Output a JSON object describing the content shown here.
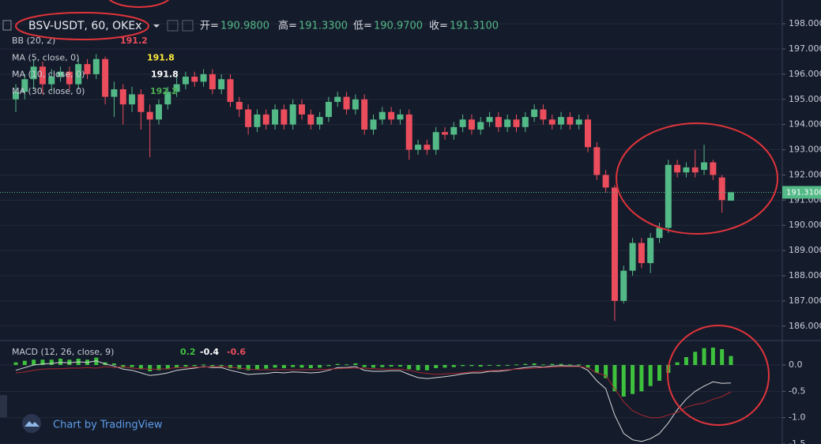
{
  "chart_data": [
    {
      "type": "candlestick",
      "title": "BSV-USDT, 60, OKEx",
      "ohlc_labels": [
        "开=",
        "高=",
        "低=",
        "收="
      ],
      "ohlc_values": [
        {
          "value": 190.98,
          "label": "190.9800"
        },
        {
          "value": 191.33,
          "label": "191.3300"
        },
        {
          "value": 190.97,
          "label": "190.9700"
        },
        {
          "value": 191.31,
          "label": "191.3100"
        }
      ],
      "legends": [
        {
          "label": "BB (20, 2)",
          "values": [
            191.2
          ],
          "colors": [
            "#eb4d5c"
          ]
        },
        {
          "label": "MA (5, close, 0)",
          "values": [
            191.8
          ],
          "colors": [
            "#ffeb3b"
          ]
        },
        {
          "label": "MA (10, close, 0)",
          "values": [
            191.8
          ],
          "colors": [
            "#ffffff"
          ]
        },
        {
          "label": "MA (30, close, 0)",
          "values": [
            192.2
          ],
          "colors": [
            "#4caf50"
          ]
        }
      ],
      "up_color": "#53b987",
      "down_color": "#eb4d5c",
      "last_price": {
        "value": 191.31,
        "label": "191.3100"
      },
      "ylim": [
        185.46,
        198.63
      ],
      "yticks": [
        {
          "value": 186,
          "label": "186.000"
        },
        {
          "value": 187,
          "label": "187.000"
        },
        {
          "value": 188,
          "label": "188.000"
        },
        {
          "value": 189,
          "label": "189.000"
        },
        {
          "value": 190,
          "label": "190.000"
        },
        {
          "value": 191,
          "label": "191.000"
        },
        {
          "value": 192,
          "label": "192.000"
        },
        {
          "value": 193,
          "label": "193.000"
        },
        {
          "value": 194,
          "label": "194.000"
        },
        {
          "value": 195,
          "label": "195.000"
        },
        {
          "value": 196,
          "label": "196.000"
        },
        {
          "value": 197,
          "label": "197.000"
        },
        {
          "value": 198,
          "label": "198.000"
        }
      ],
      "grid": true,
      "open": [
        195.0,
        195.3,
        195.8,
        196.3,
        195.6,
        195.9,
        196.1,
        195.6,
        196.4,
        196.0,
        196.6,
        195.1,
        195.4,
        194.8,
        195.2,
        194.5,
        194.2,
        194.8,
        195.3,
        195.6,
        195.9,
        195.7,
        196.0,
        195.4,
        195.8,
        194.9,
        194.6,
        193.9,
        194.4,
        194.0,
        194.6,
        194.0,
        194.8,
        194.4,
        194.0,
        194.3,
        194.9,
        195.1,
        194.6,
        195.0,
        193.8,
        194.2,
        194.5,
        194.2,
        194.4,
        193.0,
        193.2,
        193.0,
        193.7,
        193.6,
        193.9,
        194.2,
        193.8,
        194.1,
        194.3,
        193.9,
        194.2,
        193.9,
        194.3,
        194.6,
        194.2,
        194.0,
        194.3,
        194.0,
        194.2,
        193.1,
        192.0,
        191.5,
        187.0,
        188.2,
        189.3,
        188.5,
        189.5,
        189.9,
        192.4,
        192.1,
        192.3,
        192.2,
        192.5,
        191.9,
        190.98
      ],
      "high": [
        195.6,
        196.0,
        196.6,
        196.5,
        196.2,
        196.3,
        196.3,
        196.6,
        196.6,
        196.8,
        196.7,
        195.7,
        195.6,
        195.5,
        195.4,
        194.8,
        195.0,
        195.5,
        196.0,
        196.1,
        196.1,
        196.2,
        196.2,
        196.0,
        196.0,
        195.1,
        194.8,
        194.6,
        194.6,
        194.8,
        194.8,
        195.0,
        195.0,
        194.6,
        194.5,
        195.1,
        195.3,
        195.3,
        195.2,
        195.2,
        194.4,
        194.7,
        194.7,
        194.6,
        194.6,
        193.4,
        193.4,
        193.9,
        193.9,
        194.1,
        194.4,
        194.4,
        194.3,
        194.5,
        194.5,
        194.4,
        194.4,
        194.5,
        194.8,
        194.8,
        194.4,
        194.5,
        194.5,
        194.4,
        194.4,
        193.3,
        192.2,
        191.6,
        188.4,
        189.5,
        189.5,
        189.7,
        190.1,
        192.6,
        192.6,
        192.5,
        193.0,
        193.2,
        192.6,
        192.0,
        191.33
      ],
      "low": [
        194.5,
        195.0,
        195.4,
        195.2,
        195.3,
        195.7,
        195.4,
        195.4,
        195.8,
        195.8,
        194.8,
        194.3,
        194.0,
        194.5,
        193.8,
        192.7,
        194.0,
        194.6,
        195.1,
        195.4,
        195.5,
        195.5,
        195.2,
        195.2,
        194.7,
        194.3,
        193.6,
        193.7,
        193.8,
        193.8,
        193.8,
        193.8,
        194.2,
        193.8,
        193.8,
        194.1,
        194.7,
        194.4,
        194.4,
        193.6,
        193.6,
        194.0,
        194.0,
        194.0,
        192.6,
        192.8,
        192.8,
        192.8,
        193.4,
        193.4,
        193.7,
        193.6,
        193.6,
        193.9,
        193.7,
        193.7,
        193.7,
        193.7,
        194.1,
        194.0,
        193.8,
        193.8,
        193.8,
        193.8,
        192.9,
        191.8,
        191.3,
        186.2,
        186.9,
        188.0,
        188.3,
        188.1,
        189.3,
        189.7,
        191.9,
        191.9,
        191.9,
        192.0,
        191.8,
        190.5,
        190.97
      ],
      "close": [
        195.3,
        195.8,
        196.3,
        195.6,
        195.9,
        196.1,
        195.6,
        196.4,
        196.0,
        196.6,
        195.1,
        195.4,
        194.8,
        195.2,
        194.5,
        194.2,
        194.8,
        195.3,
        195.6,
        195.9,
        195.7,
        196.0,
        195.4,
        195.8,
        194.9,
        194.6,
        193.9,
        194.4,
        194.0,
        194.6,
        194.0,
        194.8,
        194.4,
        194.0,
        194.3,
        194.9,
        195.1,
        194.6,
        195.0,
        193.8,
        194.2,
        194.5,
        194.2,
        194.4,
        193.0,
        193.2,
        193.0,
        193.7,
        193.6,
        193.9,
        194.2,
        193.8,
        194.1,
        194.3,
        193.9,
        194.2,
        193.9,
        194.3,
        194.6,
        194.2,
        194.0,
        194.3,
        194.0,
        194.2,
        193.1,
        192.0,
        191.5,
        187.0,
        188.2,
        189.3,
        188.5,
        189.5,
        189.9,
        192.4,
        192.1,
        192.3,
        192.1,
        192.5,
        192.0,
        191.0,
        191.31
      ]
    },
    {
      "type": "macd",
      "legend": {
        "label": "MACD (12, 26, close, 9)",
        "values": [
          0.2,
          -0.4,
          -0.6
        ],
        "colors": [
          "#3ec23e",
          "#ffffff",
          "#eb4d5c"
        ]
      },
      "ylim": [
        -1.5,
        0.45
      ],
      "yticks": [
        {
          "value": 0,
          "label": "0.0"
        },
        {
          "value": -0.5,
          "label": "-0.5"
        },
        {
          "value": -1,
          "label": "-1.0"
        },
        {
          "value": -1.5,
          "label": "-1.5"
        }
      ],
      "histogram": {
        "color": "#3ec23e",
        "values": [
          0.05,
          0.08,
          0.1,
          0.1,
          0.1,
          0.12,
          0.1,
          0.12,
          0.1,
          0.14,
          0.05,
          0.03,
          -0.05,
          -0.04,
          -0.08,
          -0.12,
          -0.1,
          -0.08,
          -0.05,
          -0.03,
          -0.02,
          0.01,
          -0.02,
          -0.02,
          -0.06,
          -0.08,
          -0.1,
          -0.08,
          -0.07,
          -0.05,
          -0.06,
          -0.04,
          -0.05,
          -0.06,
          -0.05,
          -0.02,
          0.02,
          0.01,
          0.03,
          -0.04,
          -0.05,
          -0.04,
          -0.03,
          -0.03,
          -0.08,
          -0.1,
          -0.1,
          -0.06,
          -0.05,
          -0.04,
          -0.02,
          -0.02,
          -0.03,
          -0.01,
          -0.02,
          -0.01,
          0.01,
          0.02,
          0.03,
          0.01,
          0.02,
          0.02,
          0.01,
          0.01,
          -0.05,
          -0.15,
          -0.25,
          -0.5,
          -0.6,
          -0.55,
          -0.5,
          -0.4,
          -0.3,
          -0.15,
          0.05,
          0.15,
          0.25,
          0.32,
          0.33,
          0.3,
          0.17
        ]
      },
      "series": [
        {
          "color": "#d8d8d8",
          "values": [
            -0.1,
            -0.05,
            0,
            0.02,
            0.03,
            0.05,
            0.04,
            0.06,
            0.05,
            0.08,
            0.02,
            -0.02,
            -0.08,
            -0.1,
            -0.15,
            -0.2,
            -0.18,
            -0.15,
            -0.1,
            -0.08,
            -0.06,
            -0.03,
            -0.05,
            -0.05,
            -0.1,
            -0.14,
            -0.18,
            -0.17,
            -0.16,
            -0.14,
            -0.15,
            -0.13,
            -0.14,
            -0.15,
            -0.14,
            -0.1,
            -0.05,
            -0.05,
            -0.03,
            -0.1,
            -0.12,
            -0.12,
            -0.11,
            -0.11,
            -0.18,
            -0.24,
            -0.26,
            -0.24,
            -0.22,
            -0.2,
            -0.17,
            -0.15,
            -0.15,
            -0.12,
            -0.12,
            -0.1,
            -0.07,
            -0.05,
            -0.03,
            -0.04,
            -0.02,
            -0.01,
            -0.02,
            -0.02,
            -0.1,
            -0.3,
            -0.45,
            -0.95,
            -1.3,
            -1.42,
            -1.45,
            -1.4,
            -1.3,
            -1.1,
            -0.85,
            -0.65,
            -0.5,
            -0.4,
            -0.32,
            -0.35,
            -0.34
          ]
        },
        {
          "color": "#a8282f",
          "values": [
            -0.15,
            -0.13,
            -0.1,
            -0.08,
            -0.07,
            -0.07,
            -0.06,
            -0.06,
            -0.05,
            -0.06,
            -0.03,
            -0.05,
            -0.03,
            -0.06,
            -0.07,
            -0.08,
            -0.08,
            -0.07,
            -0.05,
            -0.05,
            -0.04,
            -0.04,
            -0.03,
            -0.03,
            -0.04,
            -0.06,
            -0.08,
            -0.09,
            -0.09,
            -0.09,
            -0.09,
            -0.09,
            -0.09,
            -0.09,
            -0.09,
            -0.08,
            -0.07,
            -0.06,
            -0.06,
            -0.06,
            -0.07,
            -0.08,
            -0.08,
            -0.08,
            -0.1,
            -0.14,
            -0.16,
            -0.18,
            -0.17,
            -0.16,
            -0.15,
            -0.13,
            -0.12,
            -0.11,
            -0.1,
            -0.09,
            -0.08,
            -0.07,
            -0.06,
            -0.05,
            -0.04,
            -0.03,
            -0.03,
            -0.03,
            -0.05,
            -0.15,
            -0.2,
            -0.45,
            -0.7,
            -0.87,
            -0.95,
            -1.0,
            -1.0,
            -0.95,
            -0.9,
            -0.8,
            -0.75,
            -0.72,
            -0.65,
            -0.6,
            -0.51
          ]
        }
      ]
    }
  ],
  "footer": "Chart by TradingView"
}
